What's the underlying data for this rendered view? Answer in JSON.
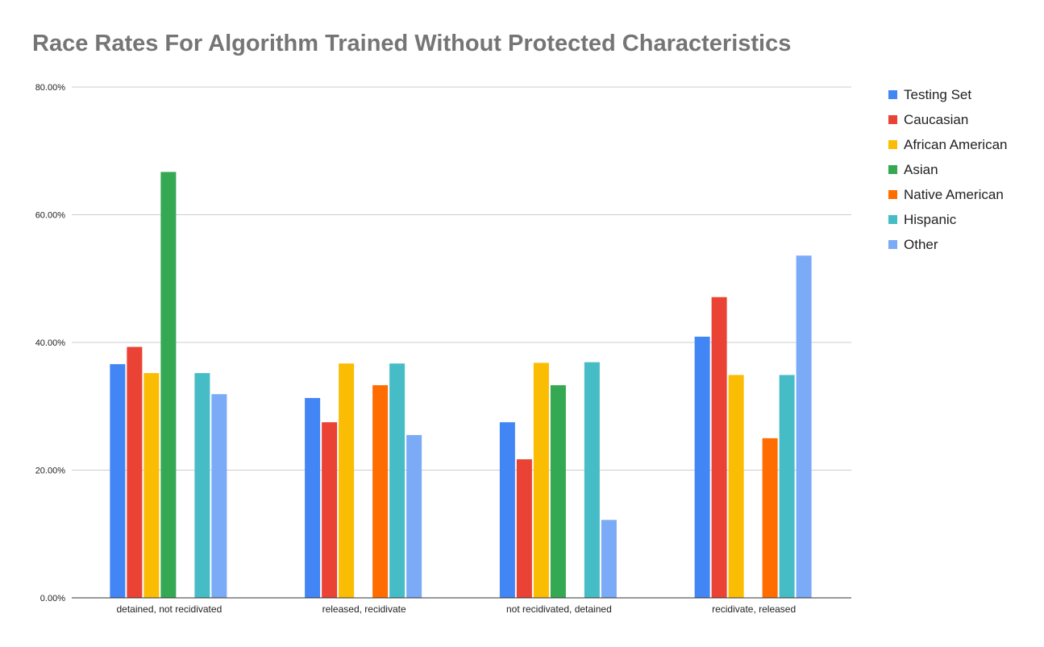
{
  "chart_data": {
    "type": "bar",
    "title": "Race Rates For Algorithm Trained Without Protected Characteristics",
    "xlabel": "",
    "ylabel": "",
    "ylim": [
      0,
      80
    ],
    "y_ticks": [
      "0.00%",
      "20.00%",
      "40.00%",
      "60.00%",
      "80.00%"
    ],
    "y_tick_values": [
      0,
      20,
      40,
      60,
      80
    ],
    "grid": true,
    "legend_position": "right",
    "categories": [
      "detained, not recidivated",
      "released, recidivate",
      "not recidivated, detained",
      "recidivate, released"
    ],
    "series": [
      {
        "name": "Testing Set",
        "color": "#4285f4",
        "values": [
          36.6,
          31.3,
          27.5,
          40.9
        ]
      },
      {
        "name": "Caucasian",
        "color": "#ea4335",
        "values": [
          39.3,
          27.5,
          21.7,
          47.1
        ]
      },
      {
        "name": "African American",
        "color": "#fbbc04",
        "values": [
          35.2,
          36.7,
          36.8,
          34.9
        ]
      },
      {
        "name": "Asian",
        "color": "#34a853",
        "values": [
          66.7,
          0,
          33.3,
          0
        ]
      },
      {
        "name": "Native American",
        "color": "#ff6d01",
        "values": [
          0,
          33.3,
          0,
          25.0
        ]
      },
      {
        "name": "Hispanic",
        "color": "#46bdc6",
        "values": [
          35.2,
          36.7,
          36.9,
          34.9
        ]
      },
      {
        "name": "Other",
        "color": "#7baaf7",
        "values": [
          31.9,
          25.5,
          12.2,
          53.6
        ]
      }
    ]
  }
}
